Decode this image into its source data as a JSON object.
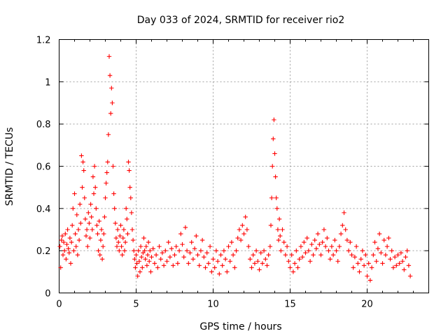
{
  "chart_data": {
    "type": "scatter",
    "title": "Day 033 of 2024, SRMTID for receiver rio2",
    "xlabel": "GPS time / hours",
    "ylabel": "SRMTID / TECUs",
    "xlim": [
      0,
      24
    ],
    "ylim": [
      0,
      1.2
    ],
    "xticks": [
      0,
      5,
      10,
      15,
      20
    ],
    "yticks": [
      0,
      0.2,
      0.4,
      0.6,
      0.8,
      1,
      1.2
    ],
    "xtick_labels": [
      "0",
      "5",
      "10",
      "15",
      "20"
    ],
    "ytick_labels": [
      "0",
      "0.2",
      "0.4",
      "0.6",
      "0.8",
      "1",
      "1.2"
    ],
    "grid": true,
    "marker": "+",
    "series": [
      {
        "name": "SRMTID",
        "color": "#ff0000",
        "points": [
          [
            0.05,
            0.22
          ],
          [
            0.1,
            0.12
          ],
          [
            0.15,
            0.25
          ],
          [
            0.2,
            0.27
          ],
          [
            0.25,
            0.18
          ],
          [
            0.3,
            0.24
          ],
          [
            0.35,
            0.2
          ],
          [
            0.4,
            0.28
          ],
          [
            0.45,
            0.16
          ],
          [
            0.5,
            0.23
          ],
          [
            0.55,
            0.3
          ],
          [
            0.6,
            0.21
          ],
          [
            0.65,
            0.19
          ],
          [
            0.7,
            0.26
          ],
          [
            0.75,
            0.14
          ],
          [
            0.8,
            0.24
          ],
          [
            0.85,
            0.32
          ],
          [
            0.9,
            0.4
          ],
          [
            0.95,
            0.2
          ],
          [
            1.0,
            0.47
          ],
          [
            1.05,
            0.28
          ],
          [
            1.1,
            0.22
          ],
          [
            1.15,
            0.37
          ],
          [
            1.2,
            0.18
          ],
          [
            1.25,
            0.3
          ],
          [
            1.3,
            0.25
          ],
          [
            1.35,
            0.42
          ],
          [
            1.4,
            0.33
          ],
          [
            1.45,
            0.65
          ],
          [
            1.5,
            0.5
          ],
          [
            1.55,
            0.62
          ],
          [
            1.6,
            0.58
          ],
          [
            1.65,
            0.45
          ],
          [
            1.7,
            0.35
          ],
          [
            1.75,
            0.27
          ],
          [
            1.8,
            0.3
          ],
          [
            1.85,
            0.22
          ],
          [
            1.9,
            0.38
          ],
          [
            1.95,
            0.33
          ],
          [
            2.0,
            0.26
          ],
          [
            2.05,
            0.42
          ],
          [
            2.1,
            0.36
          ],
          [
            2.15,
            0.3
          ],
          [
            2.2,
            0.55
          ],
          [
            2.25,
            0.47
          ],
          [
            2.3,
            0.6
          ],
          [
            2.35,
            0.5
          ],
          [
            2.4,
            0.4
          ],
          [
            2.45,
            0.32
          ],
          [
            2.5,
            0.28
          ],
          [
            2.55,
            0.2
          ],
          [
            2.6,
            0.34
          ],
          [
            2.65,
            0.18
          ],
          [
            2.7,
            0.25
          ],
          [
            2.75,
            0.3
          ],
          [
            2.8,
            0.16
          ],
          [
            2.85,
            0.22
          ],
          [
            2.9,
            0.28
          ],
          [
            2.95,
            0.36
          ],
          [
            3.0,
            0.45
          ],
          [
            3.05,
            0.52
          ],
          [
            3.1,
            0.57
          ],
          [
            3.15,
            0.62
          ],
          [
            3.2,
            0.75
          ],
          [
            3.25,
            1.12
          ],
          [
            3.3,
            1.03
          ],
          [
            3.35,
            0.85
          ],
          [
            3.4,
            0.97
          ],
          [
            3.45,
            0.9
          ],
          [
            3.5,
            0.6
          ],
          [
            3.55,
            0.47
          ],
          [
            3.6,
            0.4
          ],
          [
            3.65,
            0.33
          ],
          [
            3.7,
            0.26
          ],
          [
            3.75,
            0.22
          ],
          [
            3.8,
            0.3
          ],
          [
            3.85,
            0.24
          ],
          [
            3.9,
            0.2
          ],
          [
            3.95,
            0.27
          ],
          [
            4.0,
            0.32
          ],
          [
            4.05,
            0.22
          ],
          [
            4.1,
            0.18
          ],
          [
            4.15,
            0.26
          ],
          [
            4.2,
            0.3
          ],
          [
            4.25,
            0.2
          ],
          [
            4.3,
            0.24
          ],
          [
            4.35,
            0.4
          ],
          [
            4.4,
            0.35
          ],
          [
            4.45,
            0.28
          ],
          [
            4.5,
            0.62
          ],
          [
            4.55,
            0.58
          ],
          [
            4.6,
            0.5
          ],
          [
            4.65,
            0.45
          ],
          [
            4.7,
            0.38
          ],
          [
            4.75,
            0.3
          ],
          [
            4.8,
            0.25
          ],
          [
            4.85,
            0.2
          ],
          [
            4.9,
            0.16
          ],
          [
            4.95,
            0.12
          ],
          [
            5.0,
            0.18
          ],
          [
            5.05,
            0.14
          ],
          [
            5.1,
            0.08
          ],
          [
            5.15,
            0.2
          ],
          [
            5.2,
            0.15
          ],
          [
            5.25,
            0.1
          ],
          [
            5.3,
            0.22
          ],
          [
            5.35,
            0.17
          ],
          [
            5.4,
            0.12
          ],
          [
            5.45,
            0.19
          ],
          [
            5.5,
            0.26
          ],
          [
            5.55,
            0.2
          ],
          [
            5.6,
            0.16
          ],
          [
            5.65,
            0.22
          ],
          [
            5.7,
            0.13
          ],
          [
            5.75,
            0.18
          ],
          [
            5.8,
            0.24
          ],
          [
            5.85,
            0.15
          ],
          [
            5.9,
            0.2
          ],
          [
            5.95,
            0.1
          ],
          [
            6.0,
            0.17
          ],
          [
            6.1,
            0.21
          ],
          [
            6.2,
            0.14
          ],
          [
            6.3,
            0.18
          ],
          [
            6.4,
            0.12
          ],
          [
            6.5,
            0.22
          ],
          [
            6.6,
            0.16
          ],
          [
            6.7,
            0.19
          ],
          [
            6.8,
            0.13
          ],
          [
            6.9,
            0.2
          ],
          [
            7.0,
            0.15
          ],
          [
            7.1,
            0.24
          ],
          [
            7.2,
            0.17
          ],
          [
            7.3,
            0.21
          ],
          [
            7.4,
            0.13
          ],
          [
            7.5,
            0.18
          ],
          [
            7.6,
            0.22
          ],
          [
            7.7,
            0.14
          ],
          [
            7.8,
            0.2
          ],
          [
            7.9,
            0.28
          ],
          [
            8.0,
            0.23
          ],
          [
            8.1,
            0.17
          ],
          [
            8.2,
            0.31
          ],
          [
            8.3,
            0.2
          ],
          [
            8.4,
            0.14
          ],
          [
            8.5,
            0.19
          ],
          [
            8.6,
            0.24
          ],
          [
            8.7,
            0.16
          ],
          [
            8.8,
            0.21
          ],
          [
            8.9,
            0.27
          ],
          [
            9.0,
            0.18
          ],
          [
            9.1,
            0.13
          ],
          [
            9.2,
            0.2
          ],
          [
            9.3,
            0.25
          ],
          [
            9.4,
            0.17
          ],
          [
            9.5,
            0.12
          ],
          [
            9.6,
            0.19
          ],
          [
            9.7,
            0.14
          ],
          [
            9.8,
            0.22
          ],
          [
            9.9,
            0.1
          ],
          [
            10.0,
            0.16
          ],
          [
            10.1,
            0.12
          ],
          [
            10.2,
            0.2
          ],
          [
            10.3,
            0.15
          ],
          [
            10.4,
            0.09
          ],
          [
            10.5,
            0.18
          ],
          [
            10.6,
            0.13
          ],
          [
            10.7,
            0.2
          ],
          [
            10.8,
            0.16
          ],
          [
            10.9,
            0.1
          ],
          [
            11.0,
            0.22
          ],
          [
            11.1,
            0.15
          ],
          [
            11.2,
            0.24
          ],
          [
            11.3,
            0.18
          ],
          [
            11.4,
            0.12
          ],
          [
            11.5,
            0.2
          ],
          [
            11.6,
            0.26
          ],
          [
            11.7,
            0.3
          ],
          [
            11.8,
            0.25
          ],
          [
            11.9,
            0.32
          ],
          [
            12.0,
            0.28
          ],
          [
            12.1,
            0.36
          ],
          [
            12.2,
            0.3
          ],
          [
            12.3,
            0.22
          ],
          [
            12.4,
            0.16
          ],
          [
            12.5,
            0.12
          ],
          [
            12.6,
            0.18
          ],
          [
            12.7,
            0.14
          ],
          [
            12.8,
            0.2
          ],
          [
            12.9,
            0.15
          ],
          [
            13.0,
            0.11
          ],
          [
            13.1,
            0.19
          ],
          [
            13.2,
            0.14
          ],
          [
            13.3,
            0.2
          ],
          [
            13.4,
            0.16
          ],
          [
            13.5,
            0.13
          ],
          [
            13.6,
            0.18
          ],
          [
            13.7,
            0.22
          ],
          [
            13.75,
            0.32
          ],
          [
            13.8,
            0.45
          ],
          [
            13.85,
            0.6
          ],
          [
            13.9,
            0.73
          ],
          [
            13.95,
            0.82
          ],
          [
            14.0,
            0.66
          ],
          [
            14.05,
            0.55
          ],
          [
            14.1,
            0.45
          ],
          [
            14.15,
            0.4
          ],
          [
            14.2,
            0.3
          ],
          [
            14.25,
            0.25
          ],
          [
            14.3,
            0.35
          ],
          [
            14.35,
            0.27
          ],
          [
            14.4,
            0.2
          ],
          [
            14.5,
            0.3
          ],
          [
            14.6,
            0.24
          ],
          [
            14.7,
            0.18
          ],
          [
            14.8,
            0.22
          ],
          [
            14.9,
            0.15
          ],
          [
            15.0,
            0.12
          ],
          [
            15.1,
            0.18
          ],
          [
            15.2,
            0.1
          ],
          [
            15.3,
            0.14
          ],
          [
            15.4,
            0.2
          ],
          [
            15.5,
            0.12
          ],
          [
            15.6,
            0.16
          ],
          [
            15.7,
            0.22
          ],
          [
            15.8,
            0.17
          ],
          [
            15.9,
            0.24
          ],
          [
            16.0,
            0.19
          ],
          [
            16.1,
            0.26
          ],
          [
            16.2,
            0.2
          ],
          [
            16.3,
            0.15
          ],
          [
            16.4,
            0.23
          ],
          [
            16.5,
            0.18
          ],
          [
            16.6,
            0.25
          ],
          [
            16.7,
            0.21
          ],
          [
            16.8,
            0.28
          ],
          [
            16.9,
            0.23
          ],
          [
            17.0,
            0.18
          ],
          [
            17.1,
            0.24
          ],
          [
            17.2,
            0.3
          ],
          [
            17.3,
            0.22
          ],
          [
            17.4,
            0.26
          ],
          [
            17.5,
            0.2
          ],
          [
            17.6,
            0.16
          ],
          [
            17.7,
            0.22
          ],
          [
            17.8,
            0.18
          ],
          [
            17.9,
            0.25
          ],
          [
            18.0,
            0.2
          ],
          [
            18.1,
            0.15
          ],
          [
            18.2,
            0.22
          ],
          [
            18.3,
            0.28
          ],
          [
            18.4,
            0.32
          ],
          [
            18.5,
            0.38
          ],
          [
            18.6,
            0.3
          ],
          [
            18.7,
            0.25
          ],
          [
            18.8,
            0.2
          ],
          [
            18.9,
            0.24
          ],
          [
            19.0,
            0.18
          ],
          [
            19.1,
            0.12
          ],
          [
            19.2,
            0.17
          ],
          [
            19.3,
            0.22
          ],
          [
            19.4,
            0.14
          ],
          [
            19.5,
            0.1
          ],
          [
            19.6,
            0.16
          ],
          [
            19.7,
            0.2
          ],
          [
            19.8,
            0.13
          ],
          [
            19.9,
            0.18
          ],
          [
            20.0,
            0.08
          ],
          [
            20.1,
            0.14
          ],
          [
            20.2,
            0.06
          ],
          [
            20.3,
            0.12
          ],
          [
            20.4,
            0.18
          ],
          [
            20.5,
            0.24
          ],
          [
            20.6,
            0.15
          ],
          [
            20.7,
            0.21
          ],
          [
            20.8,
            0.28
          ],
          [
            20.9,
            0.19
          ],
          [
            21.0,
            0.14
          ],
          [
            21.1,
            0.25
          ],
          [
            21.2,
            0.18
          ],
          [
            21.3,
            0.22
          ],
          [
            21.4,
            0.26
          ],
          [
            21.5,
            0.16
          ],
          [
            21.6,
            0.2
          ],
          [
            21.7,
            0.12
          ],
          [
            21.8,
            0.17
          ],
          [
            21.9,
            0.13
          ],
          [
            22.0,
            0.18
          ],
          [
            22.1,
            0.14
          ],
          [
            22.2,
            0.19
          ],
          [
            22.3,
            0.15
          ],
          [
            22.4,
            0.11
          ],
          [
            22.5,
            0.17
          ],
          [
            22.6,
            0.2
          ],
          [
            22.7,
            0.13
          ],
          [
            22.8,
            0.08
          ]
        ]
      }
    ]
  }
}
